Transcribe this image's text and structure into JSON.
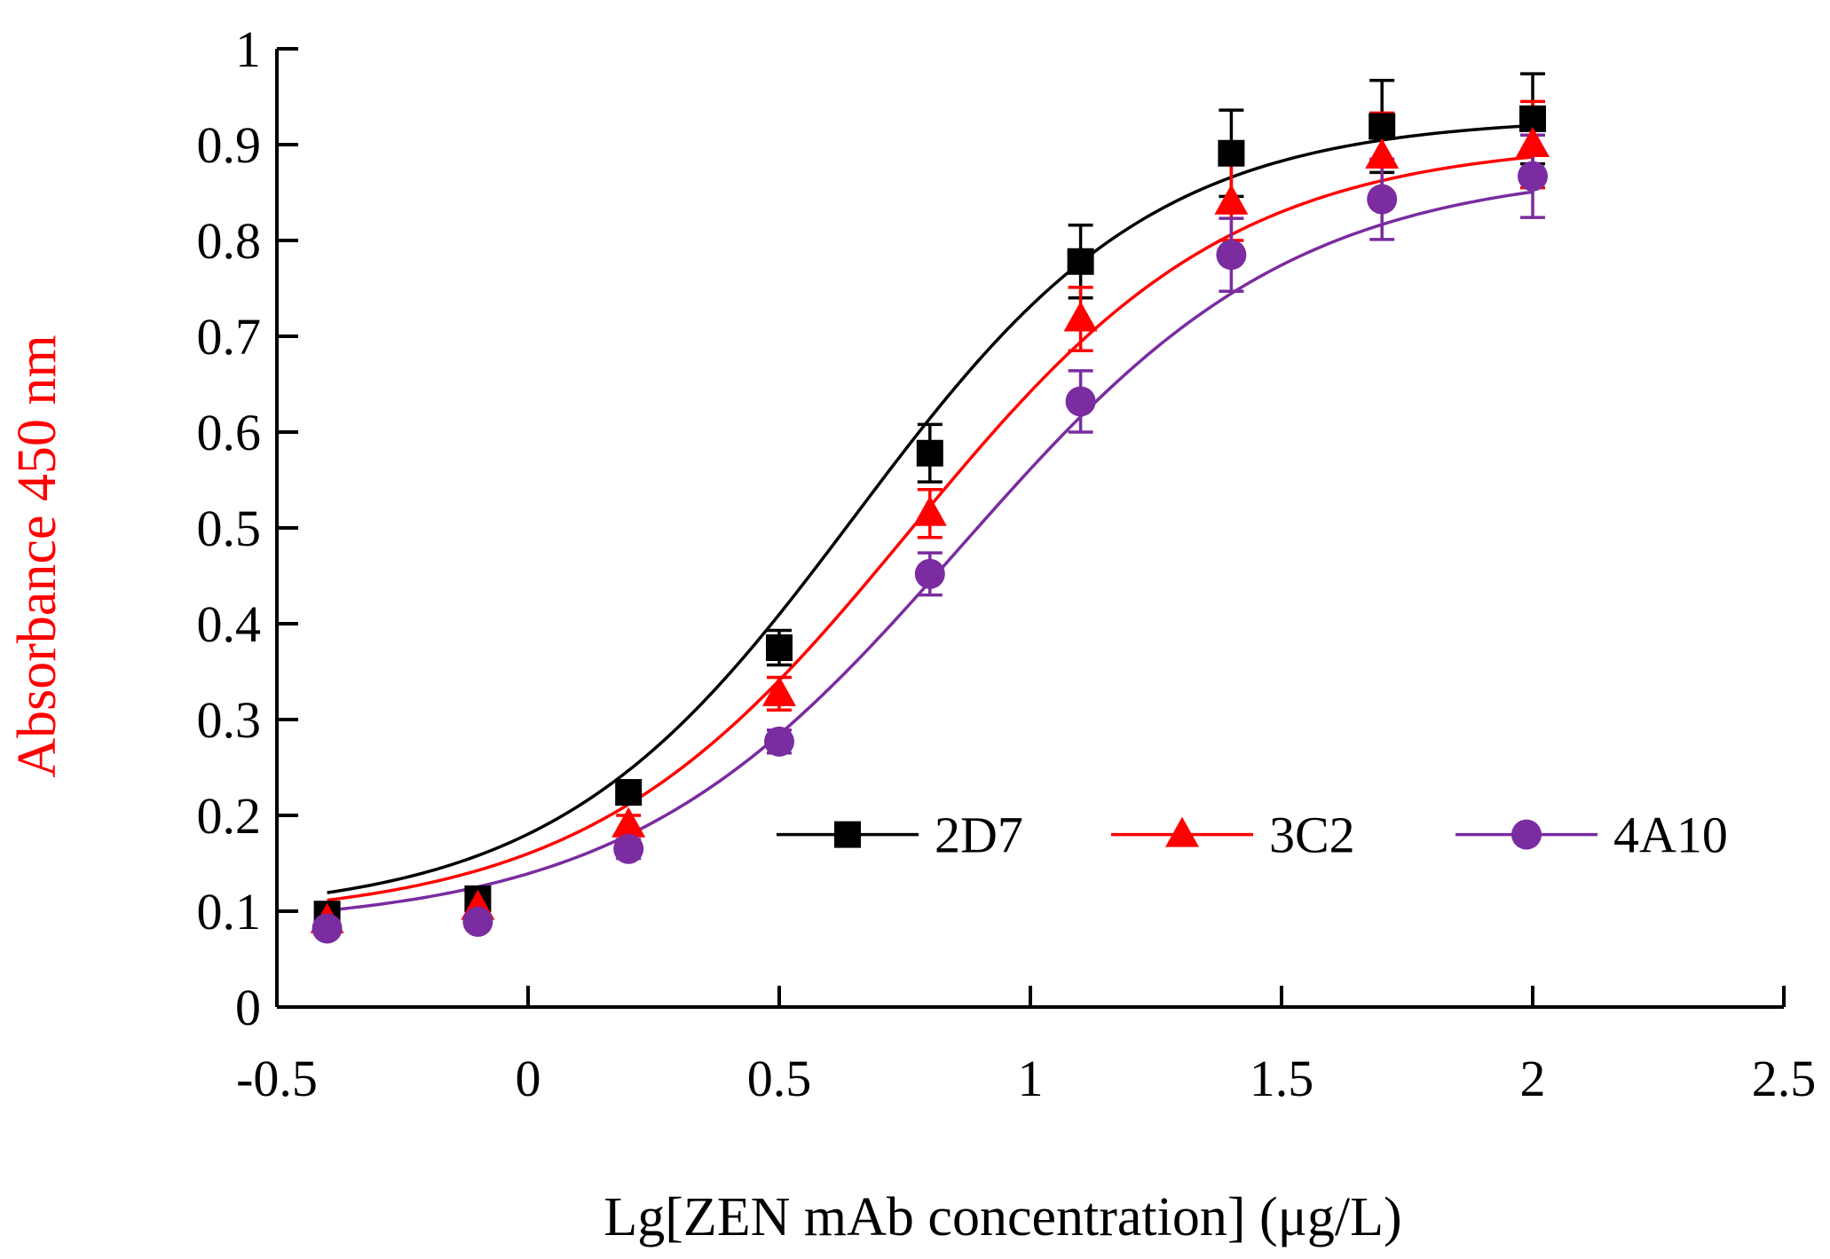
{
  "chart_data": {
    "type": "line",
    "title": "",
    "xlabel": "Lg[ZEN mAb concentration] (μg/L)",
    "ylabel": "Absorbance 450 nm",
    "xlim": [
      -0.5,
      2.5
    ],
    "ylim": [
      0,
      1
    ],
    "x_ticks": [
      -0.5,
      0,
      0.5,
      1,
      1.5,
      2,
      2.5
    ],
    "x_tick_labels": [
      "-0.5",
      "0",
      "0.5",
      "1",
      "1.5",
      "2",
      "2.5"
    ],
    "y_ticks": [
      0,
      0.1,
      0.2,
      0.3,
      0.4,
      0.5,
      0.6,
      0.7,
      0.8,
      0.9,
      1
    ],
    "y_tick_labels": [
      "0",
      "0.1",
      "0.2",
      "0.3",
      "0.4",
      "0.5",
      "0.6",
      "0.7",
      "0.8",
      "0.9",
      "1"
    ],
    "grid": false,
    "legend_position": "lower-right",
    "x": [
      -0.4,
      -0.1,
      0.2,
      0.5,
      0.8,
      1.1,
      1.4,
      1.7,
      2.0
    ],
    "series": [
      {
        "name": "2D7",
        "color": "#000000",
        "marker": "square",
        "values": [
          0.097,
          0.113,
          0.224,
          0.375,
          0.578,
          0.778,
          0.891,
          0.919,
          0.927
        ],
        "errors": [
          0.005,
          0.006,
          0.012,
          0.018,
          0.03,
          0.038,
          0.045,
          0.048,
          0.047
        ],
        "fit": {
          "bottom": 0.095,
          "top": 0.929,
          "x50": 0.65,
          "slope": 1.45
        }
      },
      {
        "name": "3C2",
        "color": "#ff0000",
        "marker": "triangle",
        "values": [
          0.09,
          0.104,
          0.19,
          0.327,
          0.515,
          0.718,
          0.84,
          0.888,
          0.9
        ],
        "errors": [
          0.005,
          0.006,
          0.01,
          0.017,
          0.025,
          0.033,
          0.04,
          0.045,
          0.045
        ],
        "fit": {
          "bottom": 0.09,
          "top": 0.904,
          "x50": 0.76,
          "slope": 1.35
        }
      },
      {
        "name": "4A10",
        "color": "#7a2ca0",
        "marker": "circle",
        "values": [
          0.082,
          0.089,
          0.165,
          0.277,
          0.452,
          0.632,
          0.785,
          0.843,
          0.867
        ],
        "errors": [
          0.004,
          0.005,
          0.01,
          0.012,
          0.022,
          0.032,
          0.038,
          0.042,
          0.043
        ],
        "fit": {
          "bottom": 0.083,
          "top": 0.876,
          "x50": 0.86,
          "slope": 1.3
        }
      }
    ]
  },
  "colors": {
    "axis": "#000000",
    "ylabel": "#ff0000",
    "xlabel": "#000000"
  }
}
